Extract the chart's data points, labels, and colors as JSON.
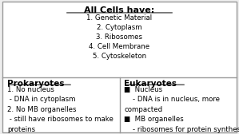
{
  "title": "All Cells have:",
  "top_items": [
    "1. Genetic Material",
    "2. Cytoplasm",
    "3. Ribosomes",
    "4. Cell Membrane",
    "5. Cytoskeleton"
  ],
  "left_header": "Prokaryotes",
  "left_items": [
    "1. No nucleus",
    " - DNA in cytoplasm",
    "2. No MB organelles",
    " - still have ribosomes to make",
    "proteins"
  ],
  "right_header": "Eukaryotes",
  "right_items": [
    "■  Nucleus",
    "    - DNA is in nucleus, more",
    "compacted",
    "■  MB organelles",
    "    - ribosomes for protein synthesis"
  ],
  "bg_color": "#eeeeee",
  "box_color": "#ffffff",
  "border_color": "#999999",
  "title_fontsize": 8.0,
  "header_fontsize": 7.5,
  "body_fontsize": 6.2
}
